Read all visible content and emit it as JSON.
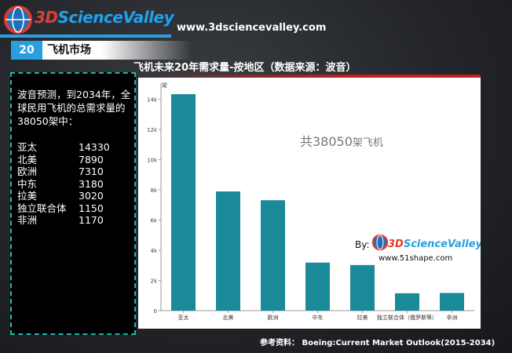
{
  "header": {
    "logo_text_part1": "3D",
    "logo_text_part2": "ScienceValley",
    "site_url": "www.3dsciencevalley.com"
  },
  "section": {
    "number": "20",
    "title": "飞机市场"
  },
  "chart_title": "飞机未来20年需求量-按地区（数据来源：波音）",
  "left_panel": {
    "intro": "波音预测，到2034年，全球民用飞机的总需求量的38050架中：",
    "rows": [
      {
        "region": "亚太",
        "value": "14330"
      },
      {
        "region": "北美",
        "value": "7890"
      },
      {
        "region": "欧洲",
        "value": "7310"
      },
      {
        "region": "中东",
        "value": "3180"
      },
      {
        "region": "拉美",
        "value": "3020"
      },
      {
        "region": "独立联合体",
        "value": "1150"
      },
      {
        "region": "非洲",
        "value": "1170"
      }
    ]
  },
  "chart_data": {
    "type": "bar",
    "categories": [
      "亚太",
      "北美",
      "欧洲",
      "中东",
      "拉美",
      "独立联合体（俄罗斯等）",
      "非洲"
    ],
    "values": [
      14330,
      7890,
      7310,
      3180,
      3020,
      1150,
      1170
    ],
    "y_axis_title": "架",
    "y_ticks": [
      "0",
      "2k",
      "4k",
      "6k",
      "8k",
      "10k",
      "12k",
      "14k"
    ],
    "ylim": [
      0,
      14800
    ],
    "bar_color": "#1a8a99",
    "annotation_main": "共38050",
    "annotation_unit": "架飞机",
    "by_label": "By:",
    "by_logo_part1": "3D",
    "by_logo_part2": "ScienceValley",
    "by_url": "www.51shape.com"
  },
  "reference": "参考资料：  Boeing:Current Market Outlook(2015-2034)",
  "colors": {
    "accent": "#2a9fe0",
    "red": "#c0201e",
    "panel_border": "#1fb5a5"
  }
}
